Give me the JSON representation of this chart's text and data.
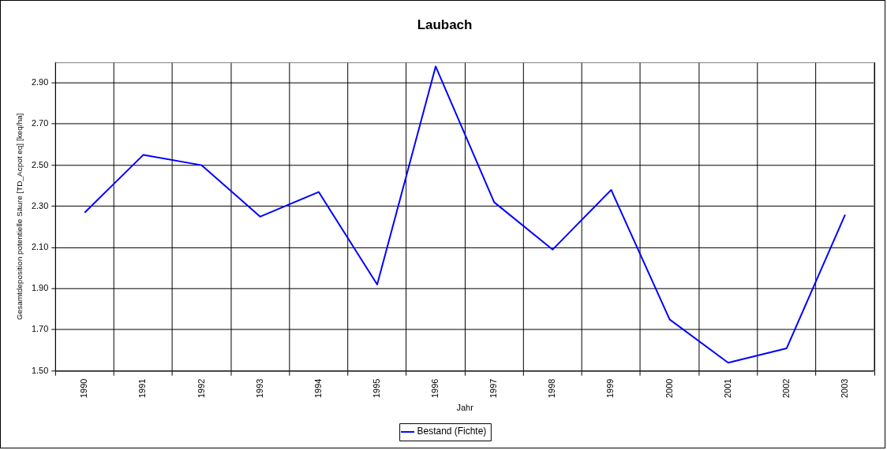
{
  "chart_data": {
    "type": "line",
    "title": "Laubach",
    "xlabel": "Jahr",
    "ylabel": "Gesamtdeposition potentielle Säure [TD_Acpot eq] [keq/ha]",
    "categories": [
      "1990",
      "1991",
      "1992",
      "1993",
      "1994",
      "1995",
      "1996",
      "1997",
      "1998",
      "1999",
      "2000",
      "2001",
      "2002",
      "2003"
    ],
    "series": [
      {
        "name": "Bestand (Fichte)",
        "color": "#0000ff",
        "values": [
          2.27,
          2.55,
          2.5,
          2.25,
          2.37,
          1.92,
          2.98,
          2.32,
          2.09,
          2.38,
          1.75,
          1.54,
          1.61,
          2.26
        ]
      }
    ],
    "ylim": [
      1.5,
      3.0
    ],
    "yticks": [
      {
        "value": 1.5,
        "label": "1.50"
      },
      {
        "value": 1.7,
        "label": "1.70"
      },
      {
        "value": 1.9,
        "label": "1.90"
      },
      {
        "value": 2.1,
        "label": "2.10"
      },
      {
        "value": 2.3,
        "label": "2.30"
      },
      {
        "value": 2.5,
        "label": "2.50"
      },
      {
        "value": 2.7,
        "label": "2.70"
      },
      {
        "value": 2.9,
        "label": "2.90"
      }
    ],
    "grid": true,
    "legend": "bottom",
    "marker": "none",
    "line_style": "solid"
  }
}
